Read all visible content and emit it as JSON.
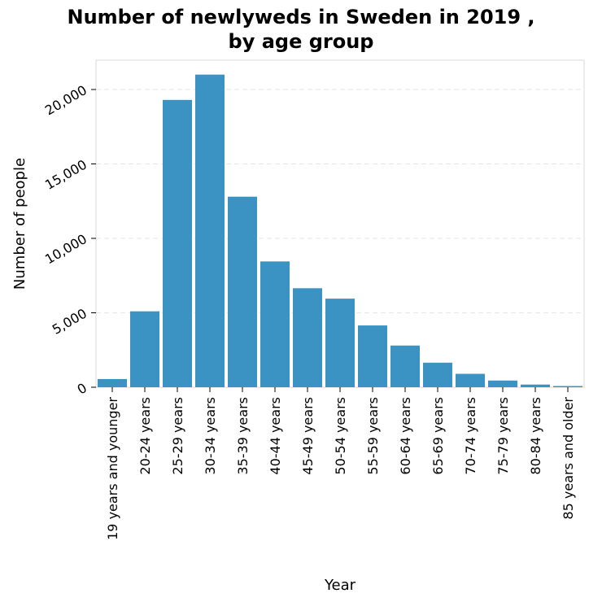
{
  "chart_data": {
    "type": "bar",
    "title_lines": [
      "Number of newlyweds in Sweden in 2019 ,",
      "by age group"
    ],
    "xlabel": "Year",
    "ylabel": "Number of people",
    "categories": [
      "19 years and younger",
      "20-24 years",
      "25-29 years",
      "30-34 years",
      "35-39 years",
      "40-44 years",
      "45-49 years",
      "50-54 years",
      "55-59 years",
      "60-64 years",
      "65-69 years",
      "70-74 years",
      "75-79 years",
      "80-84 years",
      "85 years and older"
    ],
    "values": [
      550,
      5100,
      19300,
      21000,
      12800,
      8450,
      6650,
      5950,
      4150,
      2800,
      1650,
      900,
      450,
      180,
      80
    ],
    "ylim": [
      0,
      21000
    ],
    "yticks": [
      0,
      5000,
      10000,
      15000,
      20000
    ],
    "ytick_labels": [
      "0",
      "5,000",
      "10,000",
      "15,000",
      "20,000"
    ],
    "grid": true,
    "bar_color": "#3a93c3"
  }
}
